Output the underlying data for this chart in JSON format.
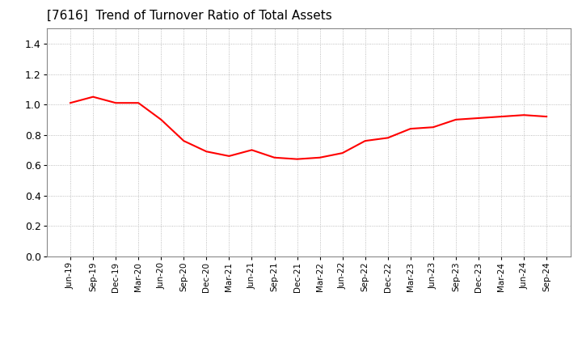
{
  "title": "[7616]  Trend of Turnover Ratio of Total Assets",
  "title_fontsize": 11,
  "line_color": "#FF0000",
  "line_width": 1.5,
  "background_color": "#FFFFFF",
  "plot_background_color": "#FFFFFF",
  "grid_color": "#AAAAAA",
  "ylim": [
    0.0,
    1.5
  ],
  "yticks": [
    0.0,
    0.2,
    0.4,
    0.6,
    0.8,
    1.0,
    1.2,
    1.4
  ],
  "x_labels": [
    "Jun-19",
    "Sep-19",
    "Dec-19",
    "Mar-20",
    "Jun-20",
    "Sep-20",
    "Dec-20",
    "Mar-21",
    "Jun-21",
    "Sep-21",
    "Dec-21",
    "Mar-22",
    "Jun-22",
    "Sep-22",
    "Dec-22",
    "Mar-23",
    "Jun-23",
    "Sep-23",
    "Dec-23",
    "Mar-24",
    "Jun-24",
    "Sep-24"
  ],
  "values": [
    1.01,
    1.05,
    1.01,
    1.01,
    0.9,
    0.76,
    0.69,
    0.66,
    0.7,
    0.65,
    0.64,
    0.65,
    0.68,
    0.76,
    0.78,
    0.84,
    0.85,
    0.9,
    0.91,
    0.92,
    0.93,
    0.92
  ]
}
